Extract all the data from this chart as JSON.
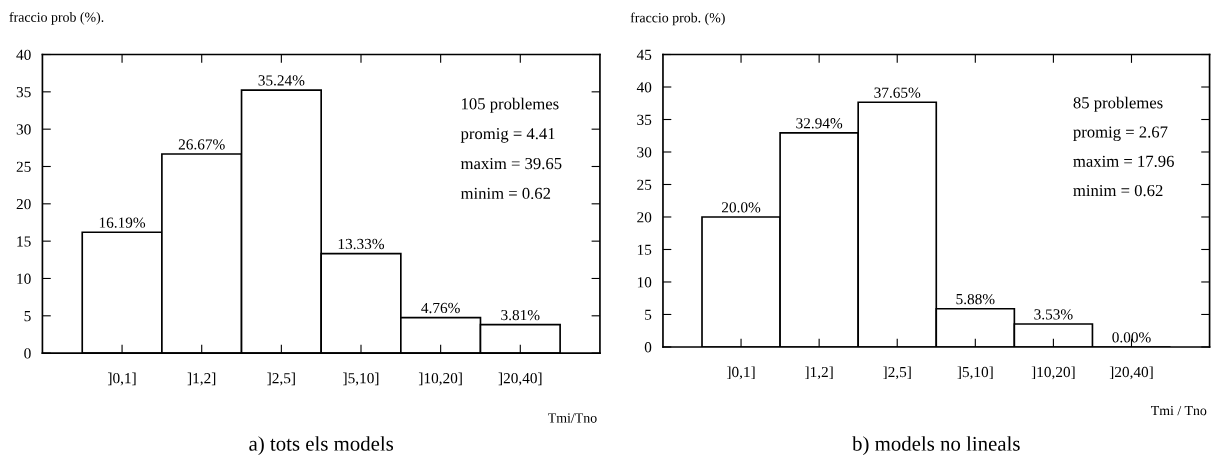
{
  "chart_data": [
    {
      "type": "bar",
      "title": "a) tots els models",
      "ylabel": "fraccio prob (%).",
      "xlabel": "Tmi/Tno",
      "categories": [
        "]0,1]",
        "]1,2]",
        "]2,5]",
        "]5,10]",
        "]10,20]",
        "]20,40]"
      ],
      "values": [
        16.19,
        26.67,
        35.24,
        13.33,
        4.76,
        3.81
      ],
      "color": "#ffffff",
      "value_labels": [
        "16.19%",
        "26.67%",
        "35.24%",
        "13.33%",
        "4.76%",
        "3.81%"
      ],
      "ylim": [
        0,
        40
      ],
      "yticks": [
        0,
        5,
        10,
        15,
        20,
        25,
        30,
        35,
        40
      ],
      "grid": false,
      "annotations": [
        "105 problemes",
        "promig = 4.41",
        "maxim = 39.65",
        "minim = 0.62"
      ]
    },
    {
      "type": "bar",
      "title": "b) models no lineals",
      "ylabel": "fraccio prob. (%)",
      "xlabel": "Tmi / Tno",
      "categories": [
        "]0,1]",
        "]1,2]",
        "]2,5]",
        "]5,10]",
        "]10,20]",
        "]20,40]"
      ],
      "values": [
        20.0,
        32.94,
        37.65,
        5.88,
        3.53,
        0.0
      ],
      "color": "#ffffff",
      "value_labels": [
        "20.0%",
        "32.94%",
        "37.65%",
        "5.88%",
        "3.53%",
        "0.00%"
      ],
      "ylim": [
        0,
        45
      ],
      "yticks": [
        0,
        5,
        10,
        15,
        20,
        25,
        30,
        35,
        40,
        45
      ],
      "grid": false,
      "annotations": [
        "85 problemes",
        "promig = 2.67",
        "maxim = 17.96",
        "minim = 0.62"
      ]
    }
  ]
}
